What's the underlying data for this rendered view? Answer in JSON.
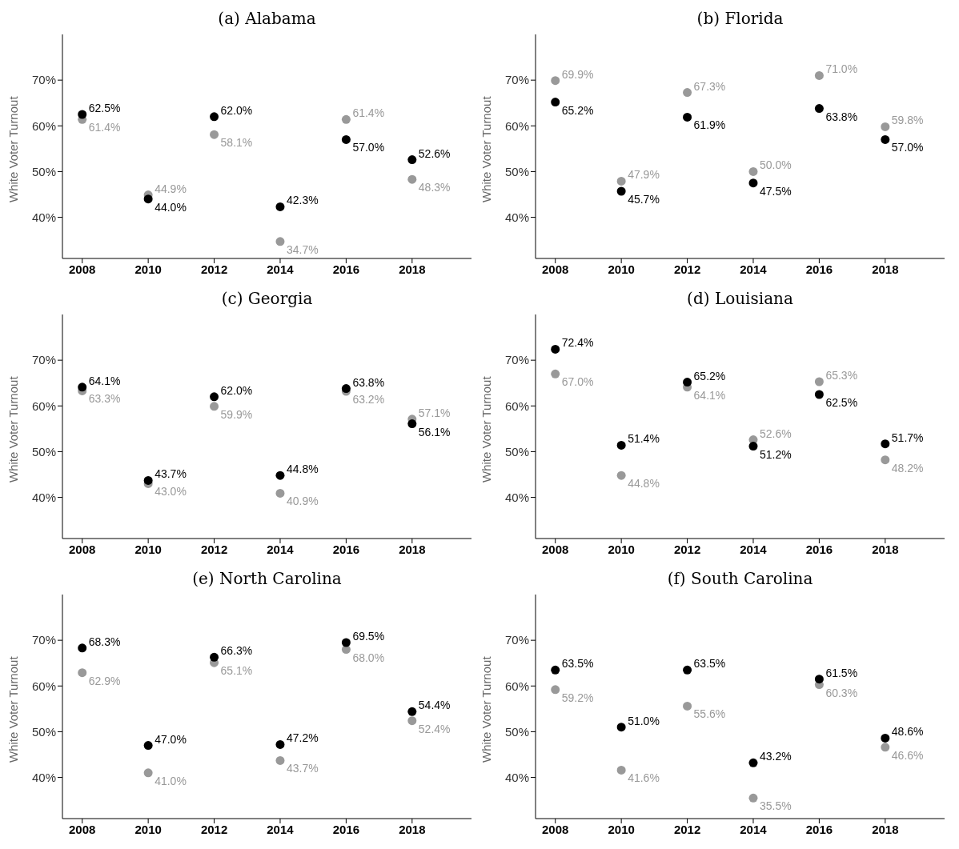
{
  "chart_data": [
    {
      "type": "scatter",
      "title": "(a) Alabama",
      "ylabel": "White Voter Turnout",
      "x": [
        2008,
        2010,
        2012,
        2014,
        2016,
        2018
      ],
      "xlim": [
        2007.4,
        2019.8
      ],
      "xticks": [
        2008,
        2010,
        2012,
        2014,
        2016,
        2018
      ],
      "ylim": [
        31,
        80
      ],
      "yticks": [
        {
          "value": 40,
          "label": "40%"
        },
        {
          "value": 50,
          "label": "50%"
        },
        {
          "value": 60,
          "label": "60%"
        },
        {
          "value": 70,
          "label": "70%"
        }
      ],
      "marker": "circle",
      "series": [
        {
          "color": "#999999",
          "values": [
            61.4,
            44.9,
            58.1,
            34.7,
            61.4,
            48.3
          ],
          "value_labels": [
            "61.4%",
            "44.9%",
            "58.1%",
            "34.7%",
            "61.4%",
            "48.3%"
          ]
        },
        {
          "color": "#000000",
          "values": [
            62.5,
            44.0,
            62.0,
            42.3,
            57.0,
            52.6
          ],
          "value_labels": [
            "62.5%",
            "44.0%",
            "62.0%",
            "42.3%",
            "57.0%",
            "52.6%"
          ]
        }
      ]
    },
    {
      "type": "scatter",
      "title": "(b) Florida",
      "ylabel": "White Voter Turnout",
      "x": [
        2008,
        2010,
        2012,
        2014,
        2016,
        2018
      ],
      "xlim": [
        2007.4,
        2019.8
      ],
      "xticks": [
        2008,
        2010,
        2012,
        2014,
        2016,
        2018
      ],
      "ylim": [
        31,
        80
      ],
      "yticks": [
        {
          "value": 40,
          "label": "40%"
        },
        {
          "value": 50,
          "label": "50%"
        },
        {
          "value": 60,
          "label": "60%"
        },
        {
          "value": 70,
          "label": "70%"
        }
      ],
      "marker": "circle",
      "series": [
        {
          "color": "#999999",
          "values": [
            69.9,
            47.9,
            67.3,
            50.0,
            71.0,
            59.8
          ],
          "value_labels": [
            "69.9%",
            "47.9%",
            "67.3%",
            "50.0%",
            "71.0%",
            "59.8%"
          ]
        },
        {
          "color": "#000000",
          "values": [
            65.2,
            45.7,
            61.9,
            47.5,
            63.8,
            57.0
          ],
          "value_labels": [
            "65.2%",
            "45.7%",
            "61.9%",
            "47.5%",
            "63.8%",
            "57.0%"
          ]
        }
      ]
    },
    {
      "type": "scatter",
      "title": "(c) Georgia",
      "ylabel": "White Voter Turnout",
      "x": [
        2008,
        2010,
        2012,
        2014,
        2016,
        2018
      ],
      "xlim": [
        2007.4,
        2019.8
      ],
      "xticks": [
        2008,
        2010,
        2012,
        2014,
        2016,
        2018
      ],
      "ylim": [
        31,
        80
      ],
      "yticks": [
        {
          "value": 40,
          "label": "40%"
        },
        {
          "value": 50,
          "label": "50%"
        },
        {
          "value": 60,
          "label": "60%"
        },
        {
          "value": 70,
          "label": "70%"
        }
      ],
      "marker": "circle",
      "series": [
        {
          "color": "#999999",
          "values": [
            63.3,
            43.0,
            59.9,
            40.9,
            63.2,
            57.1
          ],
          "value_labels": [
            "63.3%",
            "43.0%",
            "59.9%",
            "40.9%",
            "63.2%",
            "57.1%"
          ]
        },
        {
          "color": "#000000",
          "values": [
            64.1,
            43.7,
            62.0,
            44.8,
            63.8,
            56.1
          ],
          "value_labels": [
            "64.1%",
            "43.7%",
            "62.0%",
            "44.8%",
            "63.8%",
            "56.1%"
          ]
        }
      ]
    },
    {
      "type": "scatter",
      "title": "(d) Louisiana",
      "ylabel": "White Voter Turnout",
      "x": [
        2008,
        2010,
        2012,
        2014,
        2016,
        2018
      ],
      "xlim": [
        2007.4,
        2019.8
      ],
      "xticks": [
        2008,
        2010,
        2012,
        2014,
        2016,
        2018
      ],
      "ylim": [
        31,
        80
      ],
      "yticks": [
        {
          "value": 40,
          "label": "40%"
        },
        {
          "value": 50,
          "label": "50%"
        },
        {
          "value": 60,
          "label": "60%"
        },
        {
          "value": 70,
          "label": "70%"
        }
      ],
      "marker": "circle",
      "series": [
        {
          "color": "#999999",
          "values": [
            67.0,
            44.8,
            64.1,
            52.6,
            65.3,
            48.2
          ],
          "value_labels": [
            "67.0%",
            "44.8%",
            "64.1%",
            "52.6%",
            "65.3%",
            "48.2%"
          ]
        },
        {
          "color": "#000000",
          "values": [
            72.4,
            51.4,
            65.2,
            51.2,
            62.5,
            51.7
          ],
          "value_labels": [
            "72.4%",
            "51.4%",
            "65.2%",
            "51.2%",
            "62.5%",
            "51.7%"
          ]
        }
      ]
    },
    {
      "type": "scatter",
      "title": "(e) North Carolina",
      "ylabel": "White Voter Turnout",
      "x": [
        2008,
        2010,
        2012,
        2014,
        2016,
        2018
      ],
      "xlim": [
        2007.4,
        2019.8
      ],
      "xticks": [
        2008,
        2010,
        2012,
        2014,
        2016,
        2018
      ],
      "ylim": [
        31,
        80
      ],
      "yticks": [
        {
          "value": 40,
          "label": "40%"
        },
        {
          "value": 50,
          "label": "50%"
        },
        {
          "value": 60,
          "label": "60%"
        },
        {
          "value": 70,
          "label": "70%"
        }
      ],
      "marker": "circle",
      "series": [
        {
          "color": "#999999",
          "values": [
            62.9,
            41.0,
            65.1,
            43.7,
            68.0,
            52.4
          ],
          "value_labels": [
            "62.9%",
            "41.0%",
            "65.1%",
            "43.7%",
            "68.0%",
            "52.4%"
          ]
        },
        {
          "color": "#000000",
          "values": [
            68.3,
            47.0,
            66.3,
            47.2,
            69.5,
            54.4
          ],
          "value_labels": [
            "68.3%",
            "47.0%",
            "66.3%",
            "47.2%",
            "69.5%",
            "54.4%"
          ]
        }
      ]
    },
    {
      "type": "scatter",
      "title": "(f) South Carolina",
      "ylabel": "White Voter Turnout",
      "x": [
        2008,
        2010,
        2012,
        2014,
        2016,
        2018
      ],
      "xlim": [
        2007.4,
        2019.8
      ],
      "xticks": [
        2008,
        2010,
        2012,
        2014,
        2016,
        2018
      ],
      "ylim": [
        31,
        80
      ],
      "yticks": [
        {
          "value": 40,
          "label": "40%"
        },
        {
          "value": 50,
          "label": "50%"
        },
        {
          "value": 60,
          "label": "60%"
        },
        {
          "value": 70,
          "label": "70%"
        }
      ],
      "marker": "circle",
      "series": [
        {
          "color": "#999999",
          "values": [
            59.2,
            41.6,
            55.6,
            35.5,
            60.3,
            46.6
          ],
          "value_labels": [
            "59.2%",
            "41.6%",
            "55.6%",
            "35.5%",
            "60.3%",
            "46.6%"
          ]
        },
        {
          "color": "#000000",
          "values": [
            63.5,
            51.0,
            63.5,
            43.2,
            61.5,
            48.6
          ],
          "value_labels": [
            "63.5%",
            "51.0%",
            "63.5%",
            "43.2%",
            "61.5%",
            "48.6%"
          ]
        }
      ]
    }
  ]
}
